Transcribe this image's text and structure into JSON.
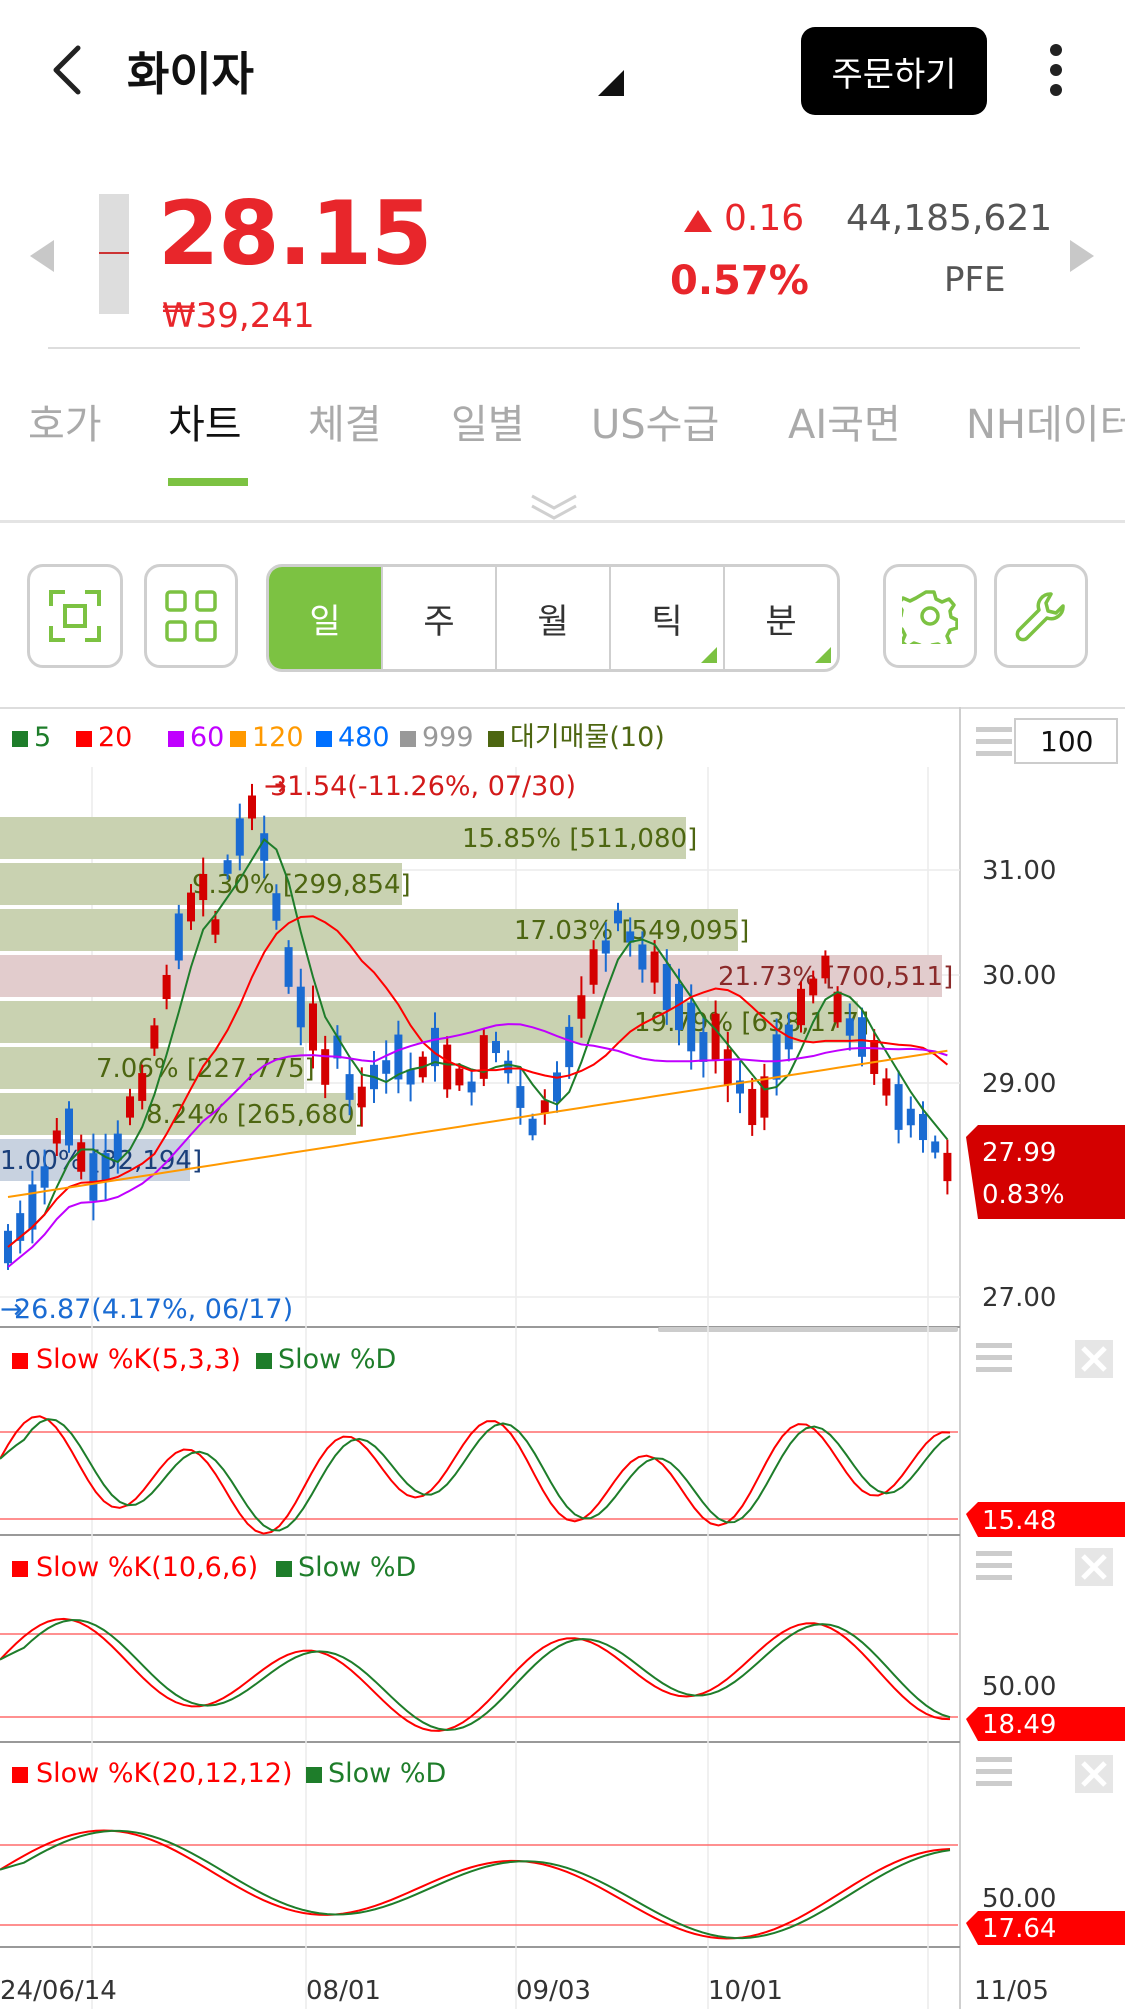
{
  "header": {
    "title": "화이자",
    "order_label": "주문하기"
  },
  "quote": {
    "price": "28.15",
    "krw": "₩39,241",
    "change": "0.16",
    "change_pct": "0.57%",
    "volume": "44,185,621",
    "ticker": "PFE"
  },
  "tabs": [
    {
      "label": "호가"
    },
    {
      "label": "차트"
    },
    {
      "label": "체결"
    },
    {
      "label": "일별"
    },
    {
      "label": "US수급"
    },
    {
      "label": "AI국면"
    },
    {
      "label": "NH데이터"
    }
  ],
  "periods": [
    {
      "label": "일"
    },
    {
      "label": "주"
    },
    {
      "label": "월"
    },
    {
      "label": "틱"
    },
    {
      "label": "분"
    }
  ],
  "chart": {
    "zoom": "100",
    "legend": [
      {
        "label": "5",
        "color": "#1e7d2a"
      },
      {
        "label": "20",
        "color": "#ff0000"
      },
      {
        "label": "60",
        "color": "#c000ff"
      },
      {
        "label": "120",
        "color": "#ff9900"
      },
      {
        "label": "480",
        "color": "#0070ff"
      },
      {
        "label": "999",
        "color": "#999999"
      },
      {
        "label": "대기매물(10)",
        "color": "#4d6611"
      }
    ],
    "high_note": "31.54(-11.26%, 07/30)",
    "low_note": "26.87(4.17%, 06/17)",
    "y_ticks": [
      "31.00",
      "30.00",
      "29.00",
      "27.00"
    ],
    "current_tag": "27.99",
    "current_pct": "0.83%",
    "volume_profile": [
      {
        "label": "15.85% [511,080]"
      },
      {
        "label": "9.30% [299,854]"
      },
      {
        "label": "17.03% [549,095]"
      },
      {
        "label": "21.73% [700,511]"
      },
      {
        "label": "19.79% [638,177]"
      },
      {
        "label": "7.06% [227,775]"
      },
      {
        "label": "8.24% [265,680]"
      },
      {
        "label": "1.00% [32,194]"
      }
    ],
    "x_ticks": [
      "24/06/14",
      "08/01",
      "09/03",
      "10/01",
      "11/05"
    ]
  },
  "stoch": [
    {
      "k_label": "Slow %K(5,3,3)",
      "d_label": "Slow %D",
      "value": "15.48",
      "tick": ""
    },
    {
      "k_label": "Slow %K(10,6,6)",
      "d_label": "Slow %D",
      "value": "18.49",
      "tick": "50.00"
    },
    {
      "k_label": "Slow %K(20,12,12)",
      "d_label": "Slow %D",
      "value": "17.64",
      "tick": "50.00"
    }
  ]
}
